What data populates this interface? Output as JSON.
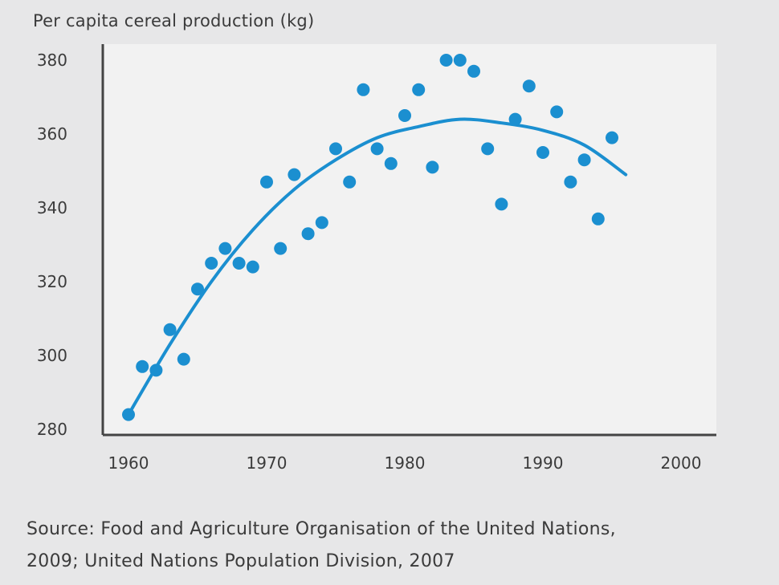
{
  "chart_data": {
    "type": "scatter",
    "ylabel": "Per capita cereal production (kg)",
    "xlabel": "",
    "xlim": [
      1958,
      2003
    ],
    "ylim": [
      279,
      383
    ],
    "xticks": [
      1960,
      1970,
      1980,
      1990,
      2000
    ],
    "yticks": [
      280,
      300,
      320,
      340,
      360,
      380
    ],
    "grid": false,
    "series": [
      {
        "kind": "points",
        "color": "#1b8fd0",
        "points": [
          [
            1960,
            284
          ],
          [
            1961,
            297
          ],
          [
            1962,
            296
          ],
          [
            1963,
            307
          ],
          [
            1964,
            299
          ],
          [
            1965,
            318
          ],
          [
            1966,
            325
          ],
          [
            1967,
            329
          ],
          [
            1968,
            325
          ],
          [
            1969,
            324
          ],
          [
            1970,
            347
          ],
          [
            1971,
            329
          ],
          [
            1972,
            349
          ],
          [
            1973,
            333
          ],
          [
            1974,
            336
          ],
          [
            1975,
            356
          ],
          [
            1976,
            347
          ],
          [
            1977,
            372
          ],
          [
            1978,
            356
          ],
          [
            1979,
            352
          ],
          [
            1980,
            365
          ],
          [
            1981,
            372
          ],
          [
            1982,
            351
          ],
          [
            1983,
            380
          ],
          [
            1984,
            380
          ],
          [
            1985,
            377
          ],
          [
            1986,
            356
          ],
          [
            1987,
            341
          ],
          [
            1988,
            364
          ],
          [
            1989,
            373
          ],
          [
            1990,
            355
          ],
          [
            1991,
            366
          ],
          [
            1992,
            347
          ],
          [
            1993,
            353
          ],
          [
            1994,
            337
          ],
          [
            1995,
            359
          ]
        ]
      },
      {
        "kind": "trend",
        "color": "#1b8fd0",
        "points": [
          [
            1960,
            284
          ],
          [
            1963,
            303
          ],
          [
            1966,
            320
          ],
          [
            1969,
            334
          ],
          [
            1972,
            345
          ],
          [
            1975,
            353
          ],
          [
            1978,
            359
          ],
          [
            1981,
            362
          ],
          [
            1984,
            364
          ],
          [
            1987,
            363
          ],
          [
            1990,
            361
          ],
          [
            1993,
            357
          ],
          [
            1996,
            349
          ]
        ]
      }
    ],
    "source_text": "Source: Food and Agriculture Organisation of the United Nations,",
    "source_text_2": "2009; United Nations Population Division, 2007",
    "plot_background": "#f2f2f2",
    "axis_color": "#444444"
  }
}
